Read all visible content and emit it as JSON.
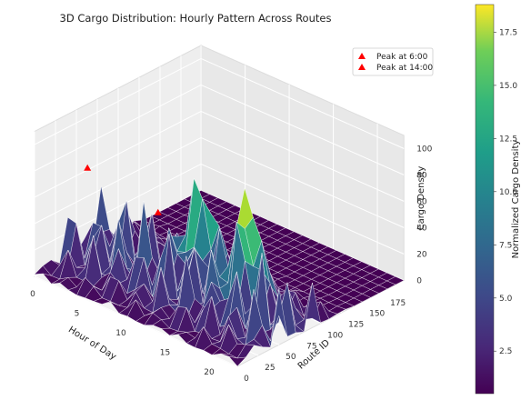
{
  "chart_data": {
    "type": "surface",
    "title": "3D Cargo Distribution: Hourly Pattern Across Routes",
    "xlabel": "Hour of Day",
    "ylabel": "Route ID",
    "zlabel": "Cargo Density",
    "xlim": [
      0,
      23
    ],
    "ylim": [
      0,
      199
    ],
    "zlim": [
      0,
      110
    ],
    "x_ticks": [
      "0",
      "5",
      "10",
      "15",
      "20"
    ],
    "y_ticks": [
      "0",
      "25",
      "50",
      "75",
      "100",
      "125",
      "150",
      "175"
    ],
    "z_ticks": [
      "0",
      "20",
      "40",
      "60",
      "80",
      "100"
    ],
    "colormap": "viridis",
    "colorbar": {
      "label": "Normalized Cargo Density",
      "range": [
        0.5,
        18.8
      ],
      "ticks": [
        "2.5",
        "5.0",
        "7.5",
        "10.0",
        "12.5",
        "15.0",
        "17.5"
      ]
    },
    "markers": [
      {
        "label": "Peak at 6:00",
        "hour": 6,
        "route": 0,
        "density": 100,
        "color": "#ff0000",
        "shape": "triangle"
      },
      {
        "label": "Peak at 14:00",
        "hour": 14,
        "route": 0,
        "density": 90,
        "color": "#ff0000",
        "shape": "triangle"
      }
    ],
    "legend_position": "top-right",
    "grid": true
  }
}
